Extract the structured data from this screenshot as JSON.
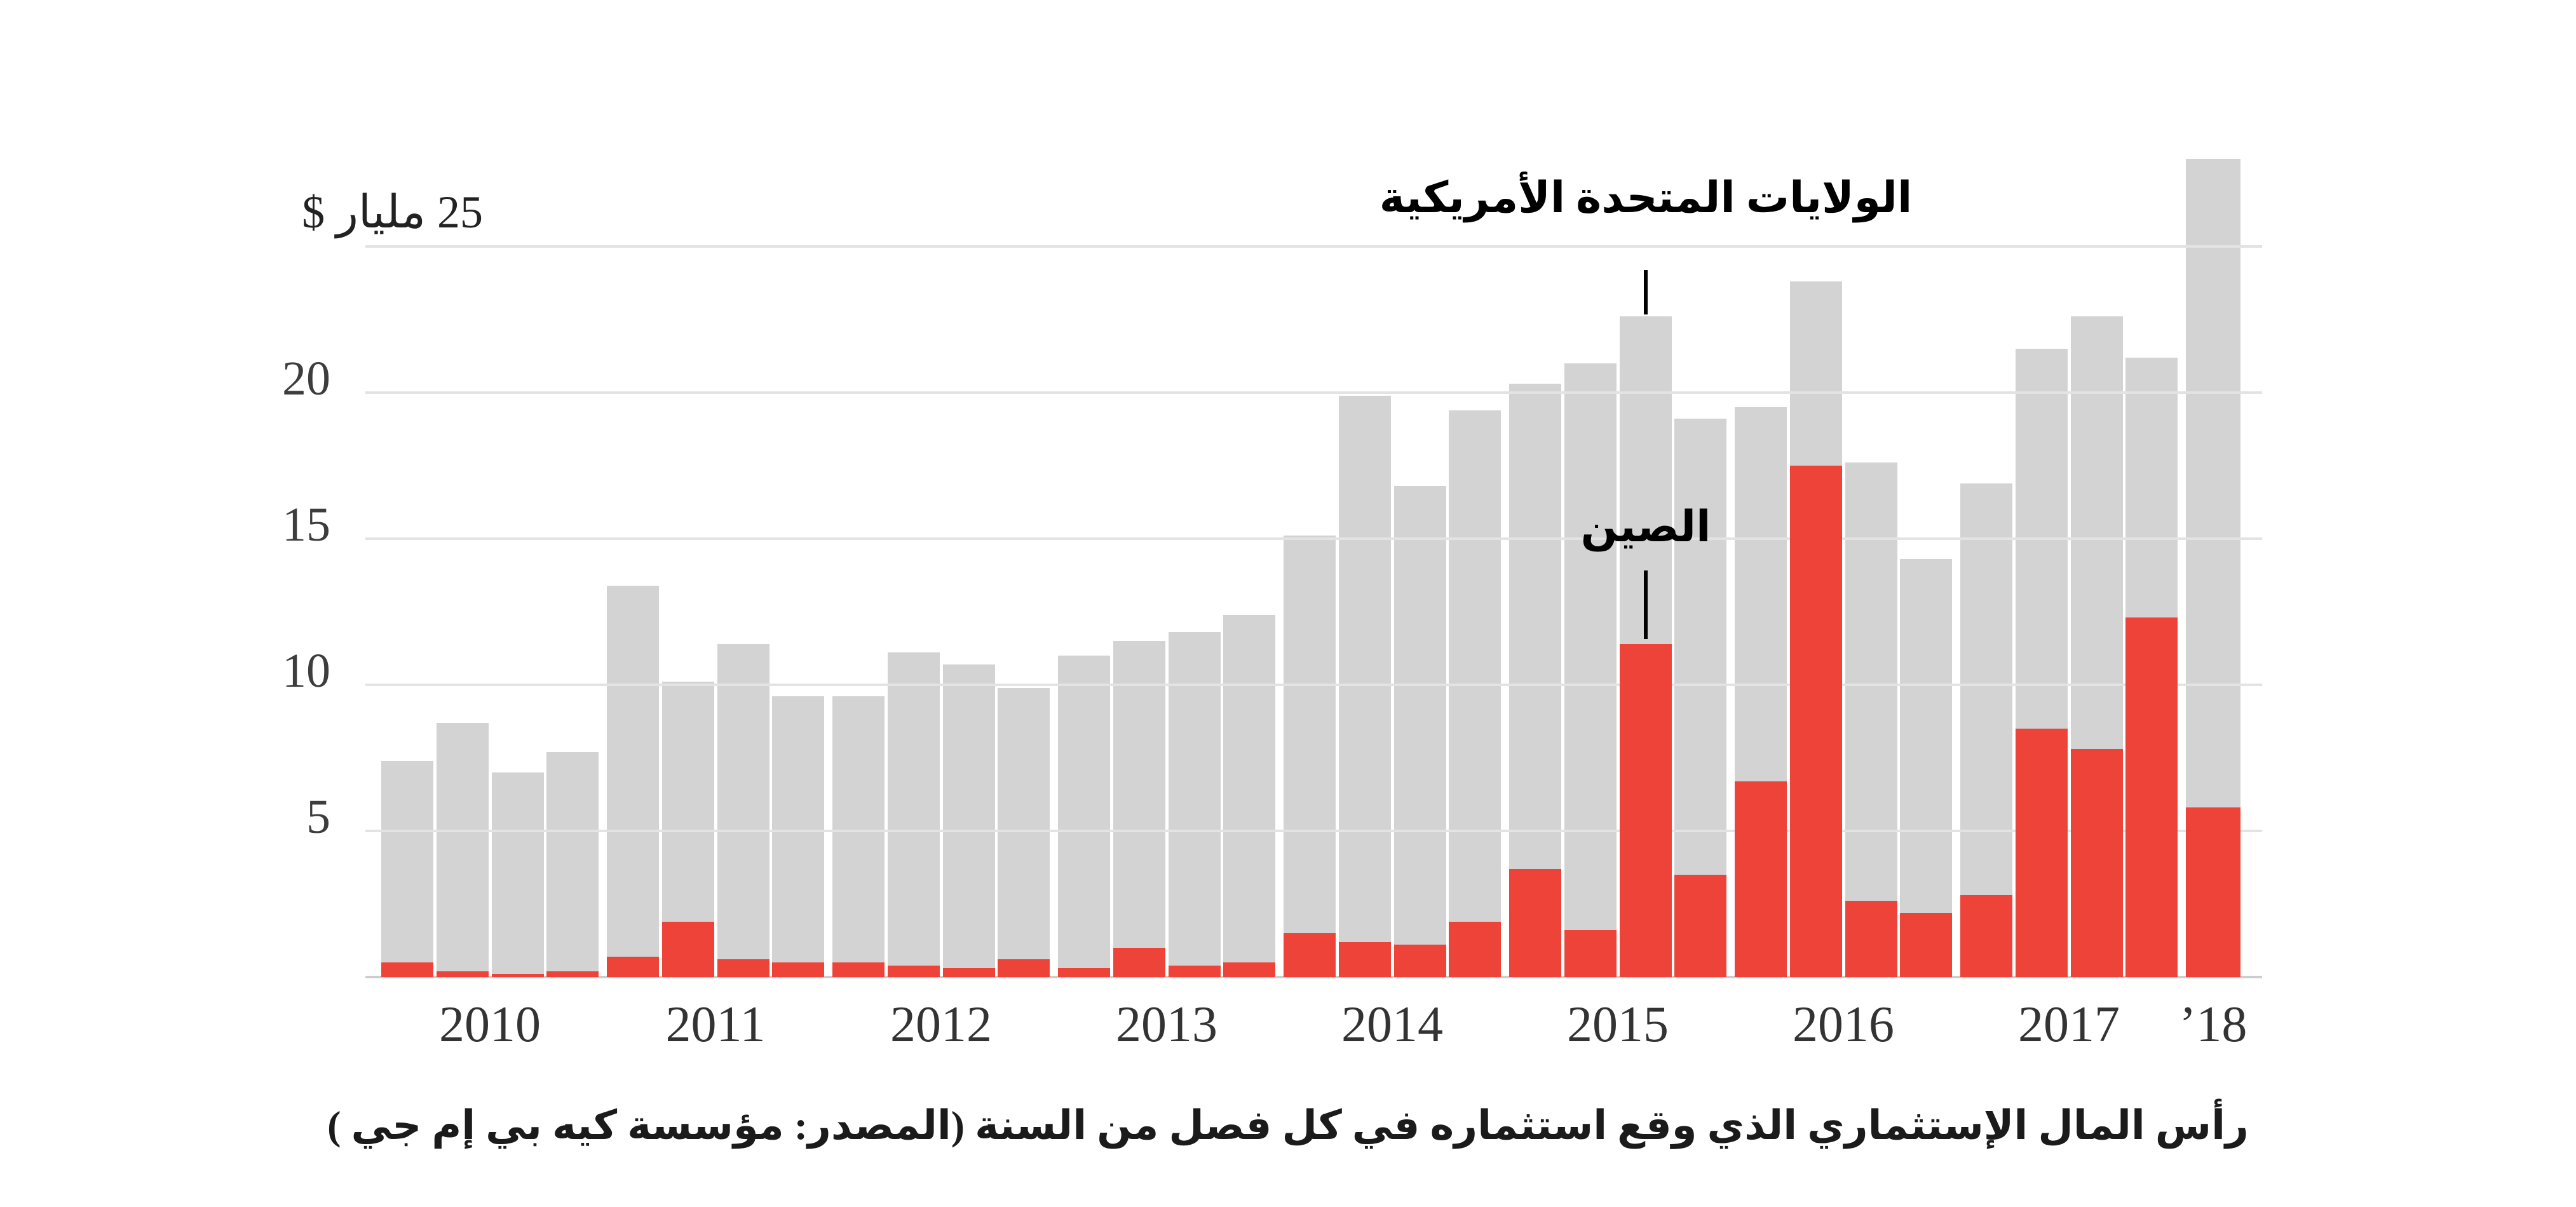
{
  "page": {
    "background": "#ffffff"
  },
  "chart_data": {
    "type": "bar",
    "title": "",
    "y_axis": {
      "top_label": "25 مليار $",
      "ticks": [
        20,
        15,
        10,
        5
      ],
      "gridline_values": [
        5,
        10,
        15,
        20,
        25
      ],
      "ylim": [
        0,
        29
      ],
      "unit": "مليار $"
    },
    "x_axis": {
      "categories": [
        "2010",
        "2011",
        "2012",
        "2013",
        "2014",
        "2015",
        "2016",
        "2017",
        "’18"
      ],
      "quarters_per_category": [
        4,
        4,
        4,
        4,
        4,
        4,
        4,
        4,
        1
      ]
    },
    "series": [
      {
        "id": "us",
        "name": "الولايات المتحدة الأمريكية",
        "color": "#d3d3d3",
        "values": [
          7.4,
          8.7,
          7.0,
          7.7,
          13.4,
          10.1,
          11.4,
          9.6,
          9.6,
          11.1,
          10.7,
          9.9,
          11.0,
          11.5,
          11.8,
          12.4,
          15.1,
          19.9,
          16.8,
          19.4,
          20.3,
          21.0,
          22.6,
          19.1,
          19.5,
          23.8,
          17.6,
          14.3,
          16.9,
          21.5,
          22.6,
          21.2,
          28.0
        ]
      },
      {
        "id": "china",
        "name": "الصين",
        "color": "#ee4338",
        "values": [
          0.5,
          0.2,
          0.1,
          0.2,
          0.7,
          1.9,
          0.6,
          0.5,
          0.5,
          0.4,
          0.3,
          0.6,
          0.3,
          1.0,
          0.4,
          0.5,
          1.5,
          1.2,
          1.1,
          1.9,
          3.7,
          1.6,
          11.4,
          3.5,
          6.7,
          17.5,
          2.6,
          2.2,
          2.8,
          8.5,
          7.8,
          12.3,
          5.8
        ]
      }
    ],
    "annotations": [
      {
        "text": "الولايات المتحدة الأمريكية",
        "series": "us",
        "quarter_index": 22
      },
      {
        "text": "الصين",
        "series": "china",
        "quarter_index": 22
      }
    ],
    "caption": "رأس المال الإستثماري الذي وقع استثماره في كل فصل من السنة  (المصدر: مؤسسة كيه بي إم جي )",
    "legend_position": "none",
    "grid": true,
    "colors": {
      "us_bar": "#d3d3d3",
      "china_bar": "#ee4338",
      "gridline": "#e3e3e3",
      "axis_line": "#cdcdcd",
      "text": "#333333"
    }
  }
}
